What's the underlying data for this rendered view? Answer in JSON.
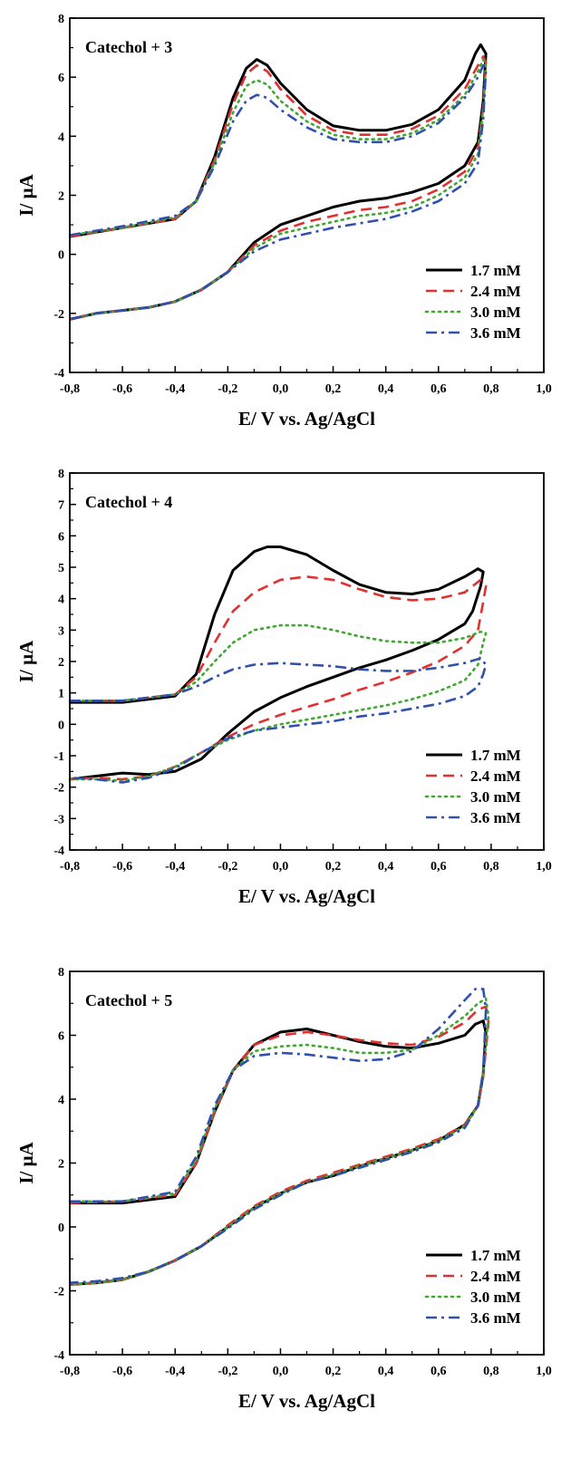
{
  "chart_data": [
    {
      "type": "line",
      "title": "Catechol + 3",
      "xlabel": "E/ V vs. Ag/AgCl",
      "ylabel": "I/ μA",
      "xlim": [
        -0.8,
        1.0
      ],
      "ylim": [
        -4,
        8
      ],
      "xticks": [
        "-0,8",
        "-0,6",
        "-0,4",
        "-0,2",
        "0,0",
        "0,2",
        "0,4",
        "0,6",
        "0,8",
        "1,0"
      ],
      "yticks": [
        "-4",
        "-2",
        "0",
        "2",
        "4",
        "6",
        "8"
      ],
      "legend_position": "bottom-right",
      "grid": false,
      "series": [
        {
          "name": "1.7 mM",
          "color": "#000000",
          "style": "solid",
          "x": [
            -0.8,
            -0.6,
            -0.4,
            -0.32,
            -0.25,
            -0.18,
            -0.13,
            -0.09,
            -0.05,
            0.0,
            0.1,
            0.2,
            0.3,
            0.4,
            0.5,
            0.6,
            0.7,
            0.74,
            0.76,
            0.78,
            0.77,
            0.75,
            0.7,
            0.6,
            0.5,
            0.4,
            0.3,
            0.2,
            0.1,
            0.0,
            -0.1,
            -0.2,
            -0.3,
            -0.4,
            -0.5,
            -0.6,
            -0.7,
            -0.8
          ],
          "y": [
            0.6,
            0.9,
            1.2,
            1.8,
            3.3,
            5.3,
            6.3,
            6.6,
            6.4,
            5.8,
            4.9,
            4.35,
            4.2,
            4.2,
            4.4,
            4.9,
            5.9,
            6.8,
            7.1,
            6.8,
            5.2,
            3.8,
            3.0,
            2.4,
            2.1,
            1.9,
            1.8,
            1.6,
            1.3,
            1.0,
            0.4,
            -0.6,
            -1.2,
            -1.6,
            -1.8,
            -1.9,
            -2.0,
            -2.2
          ]
        },
        {
          "name": "2.4 mM",
          "color": "#e03030",
          "style": "dashed",
          "x": [
            -0.8,
            -0.6,
            -0.4,
            -0.32,
            -0.25,
            -0.18,
            -0.13,
            -0.09,
            -0.05,
            0.0,
            0.1,
            0.2,
            0.3,
            0.4,
            0.5,
            0.6,
            0.7,
            0.75,
            0.77,
            0.78,
            0.77,
            0.75,
            0.7,
            0.6,
            0.5,
            0.4,
            0.3,
            0.2,
            0.1,
            0.0,
            -0.1,
            -0.2,
            -0.3,
            -0.4,
            -0.5,
            -0.6,
            -0.7,
            -0.8
          ],
          "y": [
            0.6,
            0.9,
            1.2,
            1.8,
            3.2,
            5.1,
            6.1,
            6.4,
            6.2,
            5.6,
            4.7,
            4.2,
            4.05,
            4.05,
            4.25,
            4.7,
            5.6,
            6.4,
            6.7,
            6.5,
            5.0,
            3.6,
            2.8,
            2.2,
            1.8,
            1.6,
            1.5,
            1.3,
            1.1,
            0.8,
            0.3,
            -0.6,
            -1.2,
            -1.6,
            -1.8,
            -1.9,
            -2.0,
            -2.2
          ]
        },
        {
          "name": "3.0 mM",
          "color": "#40a830",
          "style": "dotted",
          "x": [
            -0.8,
            -0.6,
            -0.4,
            -0.32,
            -0.25,
            -0.18,
            -0.13,
            -0.09,
            -0.05,
            0.0,
            0.1,
            0.2,
            0.3,
            0.4,
            0.5,
            0.6,
            0.7,
            0.75,
            0.77,
            0.78,
            0.77,
            0.75,
            0.7,
            0.6,
            0.5,
            0.4,
            0.3,
            0.2,
            0.1,
            0.0,
            -0.1,
            -0.2,
            -0.3,
            -0.4,
            -0.5,
            -0.6,
            -0.7,
            -0.8
          ],
          "y": [
            0.65,
            0.9,
            1.25,
            1.8,
            3.1,
            4.8,
            5.7,
            5.9,
            5.75,
            5.2,
            4.5,
            4.05,
            3.9,
            3.9,
            4.1,
            4.55,
            5.4,
            6.2,
            6.6,
            6.4,
            4.9,
            3.4,
            2.6,
            2.0,
            1.6,
            1.4,
            1.3,
            1.1,
            0.9,
            0.7,
            0.2,
            -0.6,
            -1.2,
            -1.6,
            -1.8,
            -1.9,
            -2.0,
            -2.2
          ]
        },
        {
          "name": "3.6 mM",
          "color": "#3050b0",
          "style": "dash-dot",
          "x": [
            -0.8,
            -0.6,
            -0.4,
            -0.32,
            -0.25,
            -0.18,
            -0.13,
            -0.09,
            -0.05,
            0.0,
            0.1,
            0.2,
            0.3,
            0.4,
            0.5,
            0.6,
            0.7,
            0.75,
            0.77,
            0.78,
            0.77,
            0.75,
            0.7,
            0.6,
            0.5,
            0.4,
            0.3,
            0.2,
            0.1,
            0.0,
            -0.1,
            -0.2,
            -0.3,
            -0.4,
            -0.5,
            -0.6,
            -0.7,
            -0.8
          ],
          "y": [
            0.65,
            0.95,
            1.3,
            1.8,
            3.0,
            4.5,
            5.2,
            5.4,
            5.3,
            4.9,
            4.3,
            3.9,
            3.8,
            3.8,
            4.0,
            4.45,
            5.3,
            6.0,
            6.4,
            6.2,
            4.6,
            3.1,
            2.4,
            1.8,
            1.45,
            1.2,
            1.05,
            0.9,
            0.7,
            0.5,
            0.1,
            -0.6,
            -1.2,
            -1.6,
            -1.8,
            -1.9,
            -2.0,
            -2.2
          ]
        }
      ]
    },
    {
      "type": "line",
      "title": "Catechol + 4",
      "xlabel": "E/ V vs. Ag/AgCl",
      "ylabel": "I/ μA",
      "xlim": [
        -0.8,
        1.0
      ],
      "ylim": [
        -4,
        8
      ],
      "xticks": [
        "-0,8",
        "-0,6",
        "-0,4",
        "-0,2",
        "0,0",
        "0,2",
        "0,4",
        "0,6",
        "0,8",
        "1,0"
      ],
      "yticks": [
        "-4",
        "-3",
        "-2",
        "-1",
        "0",
        "1",
        "2",
        "3",
        "4",
        "5",
        "6",
        "7",
        "8"
      ],
      "legend_position": "bottom-right",
      "grid": false,
      "series": [
        {
          "name": "1.7 mM",
          "color": "#000000",
          "style": "solid",
          "x": [
            -0.8,
            -0.6,
            -0.4,
            -0.32,
            -0.25,
            -0.18,
            -0.1,
            -0.05,
            0.0,
            0.1,
            0.2,
            0.3,
            0.4,
            0.5,
            0.6,
            0.7,
            0.75,
            0.77,
            0.76,
            0.73,
            0.7,
            0.6,
            0.5,
            0.4,
            0.3,
            0.2,
            0.1,
            0.0,
            -0.1,
            -0.2,
            -0.3,
            -0.4,
            -0.5,
            -0.6,
            -0.7,
            -0.8
          ],
          "y": [
            0.7,
            0.7,
            0.9,
            1.6,
            3.5,
            4.9,
            5.5,
            5.65,
            5.65,
            5.4,
            4.9,
            4.45,
            4.2,
            4.15,
            4.3,
            4.7,
            4.95,
            4.85,
            4.4,
            3.6,
            3.2,
            2.7,
            2.35,
            2.05,
            1.8,
            1.5,
            1.2,
            0.85,
            0.4,
            -0.3,
            -1.1,
            -1.5,
            -1.6,
            -1.55,
            -1.65,
            -1.75
          ]
        },
        {
          "name": "2.4 mM",
          "color": "#e03030",
          "style": "dashed",
          "x": [
            -0.8,
            -0.6,
            -0.4,
            -0.32,
            -0.25,
            -0.18,
            -0.1,
            0.0,
            0.1,
            0.2,
            0.3,
            0.4,
            0.5,
            0.6,
            0.7,
            0.76,
            0.78,
            0.77,
            0.75,
            0.7,
            0.6,
            0.5,
            0.4,
            0.3,
            0.2,
            0.1,
            0.0,
            -0.1,
            -0.2,
            -0.3,
            -0.4,
            -0.5,
            -0.6,
            -0.7,
            -0.8
          ],
          "y": [
            0.75,
            0.75,
            0.95,
            1.5,
            2.6,
            3.6,
            4.2,
            4.6,
            4.7,
            4.6,
            4.3,
            4.05,
            3.95,
            4.0,
            4.2,
            4.6,
            4.4,
            3.9,
            3.0,
            2.5,
            2.0,
            1.65,
            1.35,
            1.1,
            0.8,
            0.55,
            0.3,
            0.0,
            -0.4,
            -0.9,
            -1.35,
            -1.65,
            -1.75,
            -1.7,
            -1.75
          ]
        },
        {
          "name": "3.0 mM",
          "color": "#40a830",
          "style": "dotted",
          "x": [
            -0.8,
            -0.6,
            -0.4,
            -0.32,
            -0.25,
            -0.18,
            -0.1,
            0.0,
            0.1,
            0.2,
            0.3,
            0.4,
            0.5,
            0.6,
            0.7,
            0.76,
            0.78,
            0.77,
            0.75,
            0.7,
            0.6,
            0.5,
            0.4,
            0.3,
            0.2,
            0.1,
            0.0,
            -0.1,
            -0.2,
            -0.3,
            -0.4,
            -0.5,
            -0.6,
            -0.7,
            -0.8
          ],
          "y": [
            0.75,
            0.75,
            0.95,
            1.35,
            2.0,
            2.6,
            3.0,
            3.15,
            3.15,
            3.0,
            2.8,
            2.65,
            2.6,
            2.6,
            2.75,
            2.95,
            2.9,
            2.6,
            1.9,
            1.4,
            1.05,
            0.8,
            0.6,
            0.45,
            0.3,
            0.15,
            0.0,
            -0.2,
            -0.5,
            -0.9,
            -1.35,
            -1.65,
            -1.8,
            -1.75,
            -1.75
          ]
        },
        {
          "name": "3.6 mM",
          "color": "#3050b0",
          "style": "dash-dot",
          "x": [
            -0.8,
            -0.6,
            -0.4,
            -0.32,
            -0.25,
            -0.18,
            -0.1,
            0.0,
            0.1,
            0.2,
            0.3,
            0.4,
            0.5,
            0.6,
            0.7,
            0.76,
            0.78,
            0.77,
            0.75,
            0.7,
            0.6,
            0.5,
            0.4,
            0.3,
            0.2,
            0.1,
            0.0,
            -0.1,
            -0.2,
            -0.3,
            -0.4,
            -0.5,
            -0.6,
            -0.7,
            -0.8
          ],
          "y": [
            0.75,
            0.75,
            0.95,
            1.2,
            1.5,
            1.75,
            1.9,
            1.95,
            1.9,
            1.85,
            1.75,
            1.7,
            1.7,
            1.8,
            1.95,
            2.1,
            1.9,
            1.6,
            1.2,
            0.9,
            0.65,
            0.5,
            0.35,
            0.25,
            0.1,
            0.0,
            -0.1,
            -0.2,
            -0.45,
            -0.9,
            -1.4,
            -1.7,
            -1.85,
            -1.75,
            -1.7
          ]
        }
      ]
    },
    {
      "type": "line",
      "title": "Catechol + 5",
      "xlabel": "E/ V vs. Ag/AgCl",
      "ylabel": "I/ μA",
      "xlim": [
        -0.8,
        1.0
      ],
      "ylim": [
        -4,
        8
      ],
      "xticks": [
        "-0,8",
        "-0,6",
        "-0,4",
        "-0,2",
        "0,0",
        "0,2",
        "0,4",
        "0,6",
        "0,8",
        "1,0"
      ],
      "yticks": [
        "-4",
        "-2",
        "0",
        "2",
        "4",
        "6",
        "8"
      ],
      "legend_position": "bottom-right",
      "grid": false,
      "series": [
        {
          "name": "1.7 mM",
          "color": "#000000",
          "style": "solid",
          "x": [
            -0.8,
            -0.6,
            -0.4,
            -0.32,
            -0.25,
            -0.18,
            -0.1,
            0.0,
            0.1,
            0.2,
            0.3,
            0.4,
            0.5,
            0.6,
            0.7,
            0.74,
            0.77,
            0.78,
            0.77,
            0.75,
            0.7,
            0.6,
            0.5,
            0.4,
            0.3,
            0.2,
            0.1,
            0.0,
            -0.1,
            -0.2,
            -0.3,
            -0.4,
            -0.5,
            -0.6,
            -0.7,
            -0.8
          ],
          "y": [
            0.75,
            0.75,
            0.95,
            2.0,
            3.6,
            4.9,
            5.7,
            6.1,
            6.2,
            6.0,
            5.8,
            5.65,
            5.6,
            5.75,
            6.0,
            6.35,
            6.45,
            6.1,
            4.8,
            3.8,
            3.2,
            2.7,
            2.4,
            2.15,
            1.9,
            1.6,
            1.4,
            1.05,
            0.6,
            0.0,
            -0.6,
            -1.05,
            -1.4,
            -1.65,
            -1.75,
            -1.8
          ]
        },
        {
          "name": "2.4 mM",
          "color": "#e03030",
          "style": "dashed",
          "x": [
            -0.8,
            -0.6,
            -0.4,
            -0.32,
            -0.25,
            -0.18,
            -0.1,
            0.0,
            0.1,
            0.2,
            0.3,
            0.4,
            0.5,
            0.6,
            0.7,
            0.75,
            0.78,
            0.79,
            0.77,
            0.75,
            0.7,
            0.6,
            0.5,
            0.4,
            0.3,
            0.2,
            0.1,
            0.0,
            -0.1,
            -0.2,
            -0.3,
            -0.4,
            -0.5,
            -0.6,
            -0.7,
            -0.8
          ],
          "y": [
            0.75,
            0.8,
            1.0,
            2.0,
            3.6,
            4.9,
            5.7,
            6.0,
            6.1,
            6.0,
            5.85,
            5.75,
            5.7,
            5.95,
            6.4,
            6.8,
            6.9,
            6.4,
            4.7,
            3.8,
            3.2,
            2.75,
            2.45,
            2.2,
            1.95,
            1.7,
            1.45,
            1.1,
            0.65,
            0.05,
            -0.6,
            -1.05,
            -1.4,
            -1.65,
            -1.75,
            -1.8
          ]
        },
        {
          "name": "3.0 mM",
          "color": "#40a830",
          "style": "dotted",
          "x": [
            -0.8,
            -0.6,
            -0.4,
            -0.32,
            -0.25,
            -0.18,
            -0.1,
            0.0,
            0.1,
            0.2,
            0.3,
            0.4,
            0.5,
            0.6,
            0.7,
            0.75,
            0.78,
            0.79,
            0.77,
            0.75,
            0.7,
            0.6,
            0.5,
            0.4,
            0.3,
            0.2,
            0.1,
            0.0,
            -0.1,
            -0.2,
            -0.3,
            -0.4,
            -0.5,
            -0.6,
            -0.7,
            -0.8
          ],
          "y": [
            0.8,
            0.8,
            1.05,
            2.1,
            3.7,
            4.9,
            5.5,
            5.65,
            5.7,
            5.6,
            5.45,
            5.45,
            5.55,
            6.0,
            6.6,
            7.0,
            7.15,
            6.6,
            4.8,
            3.8,
            3.15,
            2.7,
            2.4,
            2.15,
            1.9,
            1.65,
            1.4,
            1.05,
            0.6,
            0.0,
            -0.6,
            -1.05,
            -1.4,
            -1.65,
            -1.75,
            -1.8
          ]
        },
        {
          "name": "3.6 mM",
          "color": "#3050b0",
          "style": "dash-dot",
          "x": [
            -0.8,
            -0.6,
            -0.4,
            -0.32,
            -0.25,
            -0.18,
            -0.1,
            0.0,
            0.1,
            0.2,
            0.3,
            0.4,
            0.5,
            0.6,
            0.7,
            0.74,
            0.77,
            0.78,
            0.77,
            0.75,
            0.7,
            0.6,
            0.5,
            0.4,
            0.3,
            0.2,
            0.1,
            0.0,
            -0.1,
            -0.2,
            -0.3,
            -0.4,
            -0.5,
            -0.6,
            -0.7,
            -0.8
          ],
          "y": [
            0.8,
            0.8,
            1.1,
            2.2,
            3.8,
            4.9,
            5.35,
            5.45,
            5.4,
            5.3,
            5.2,
            5.25,
            5.5,
            6.2,
            7.1,
            7.45,
            7.45,
            6.8,
            4.9,
            3.8,
            3.1,
            2.65,
            2.35,
            2.1,
            1.85,
            1.6,
            1.4,
            1.0,
            0.55,
            -0.05,
            -0.6,
            -1.05,
            -1.4,
            -1.6,
            -1.7,
            -1.75
          ]
        }
      ]
    }
  ]
}
